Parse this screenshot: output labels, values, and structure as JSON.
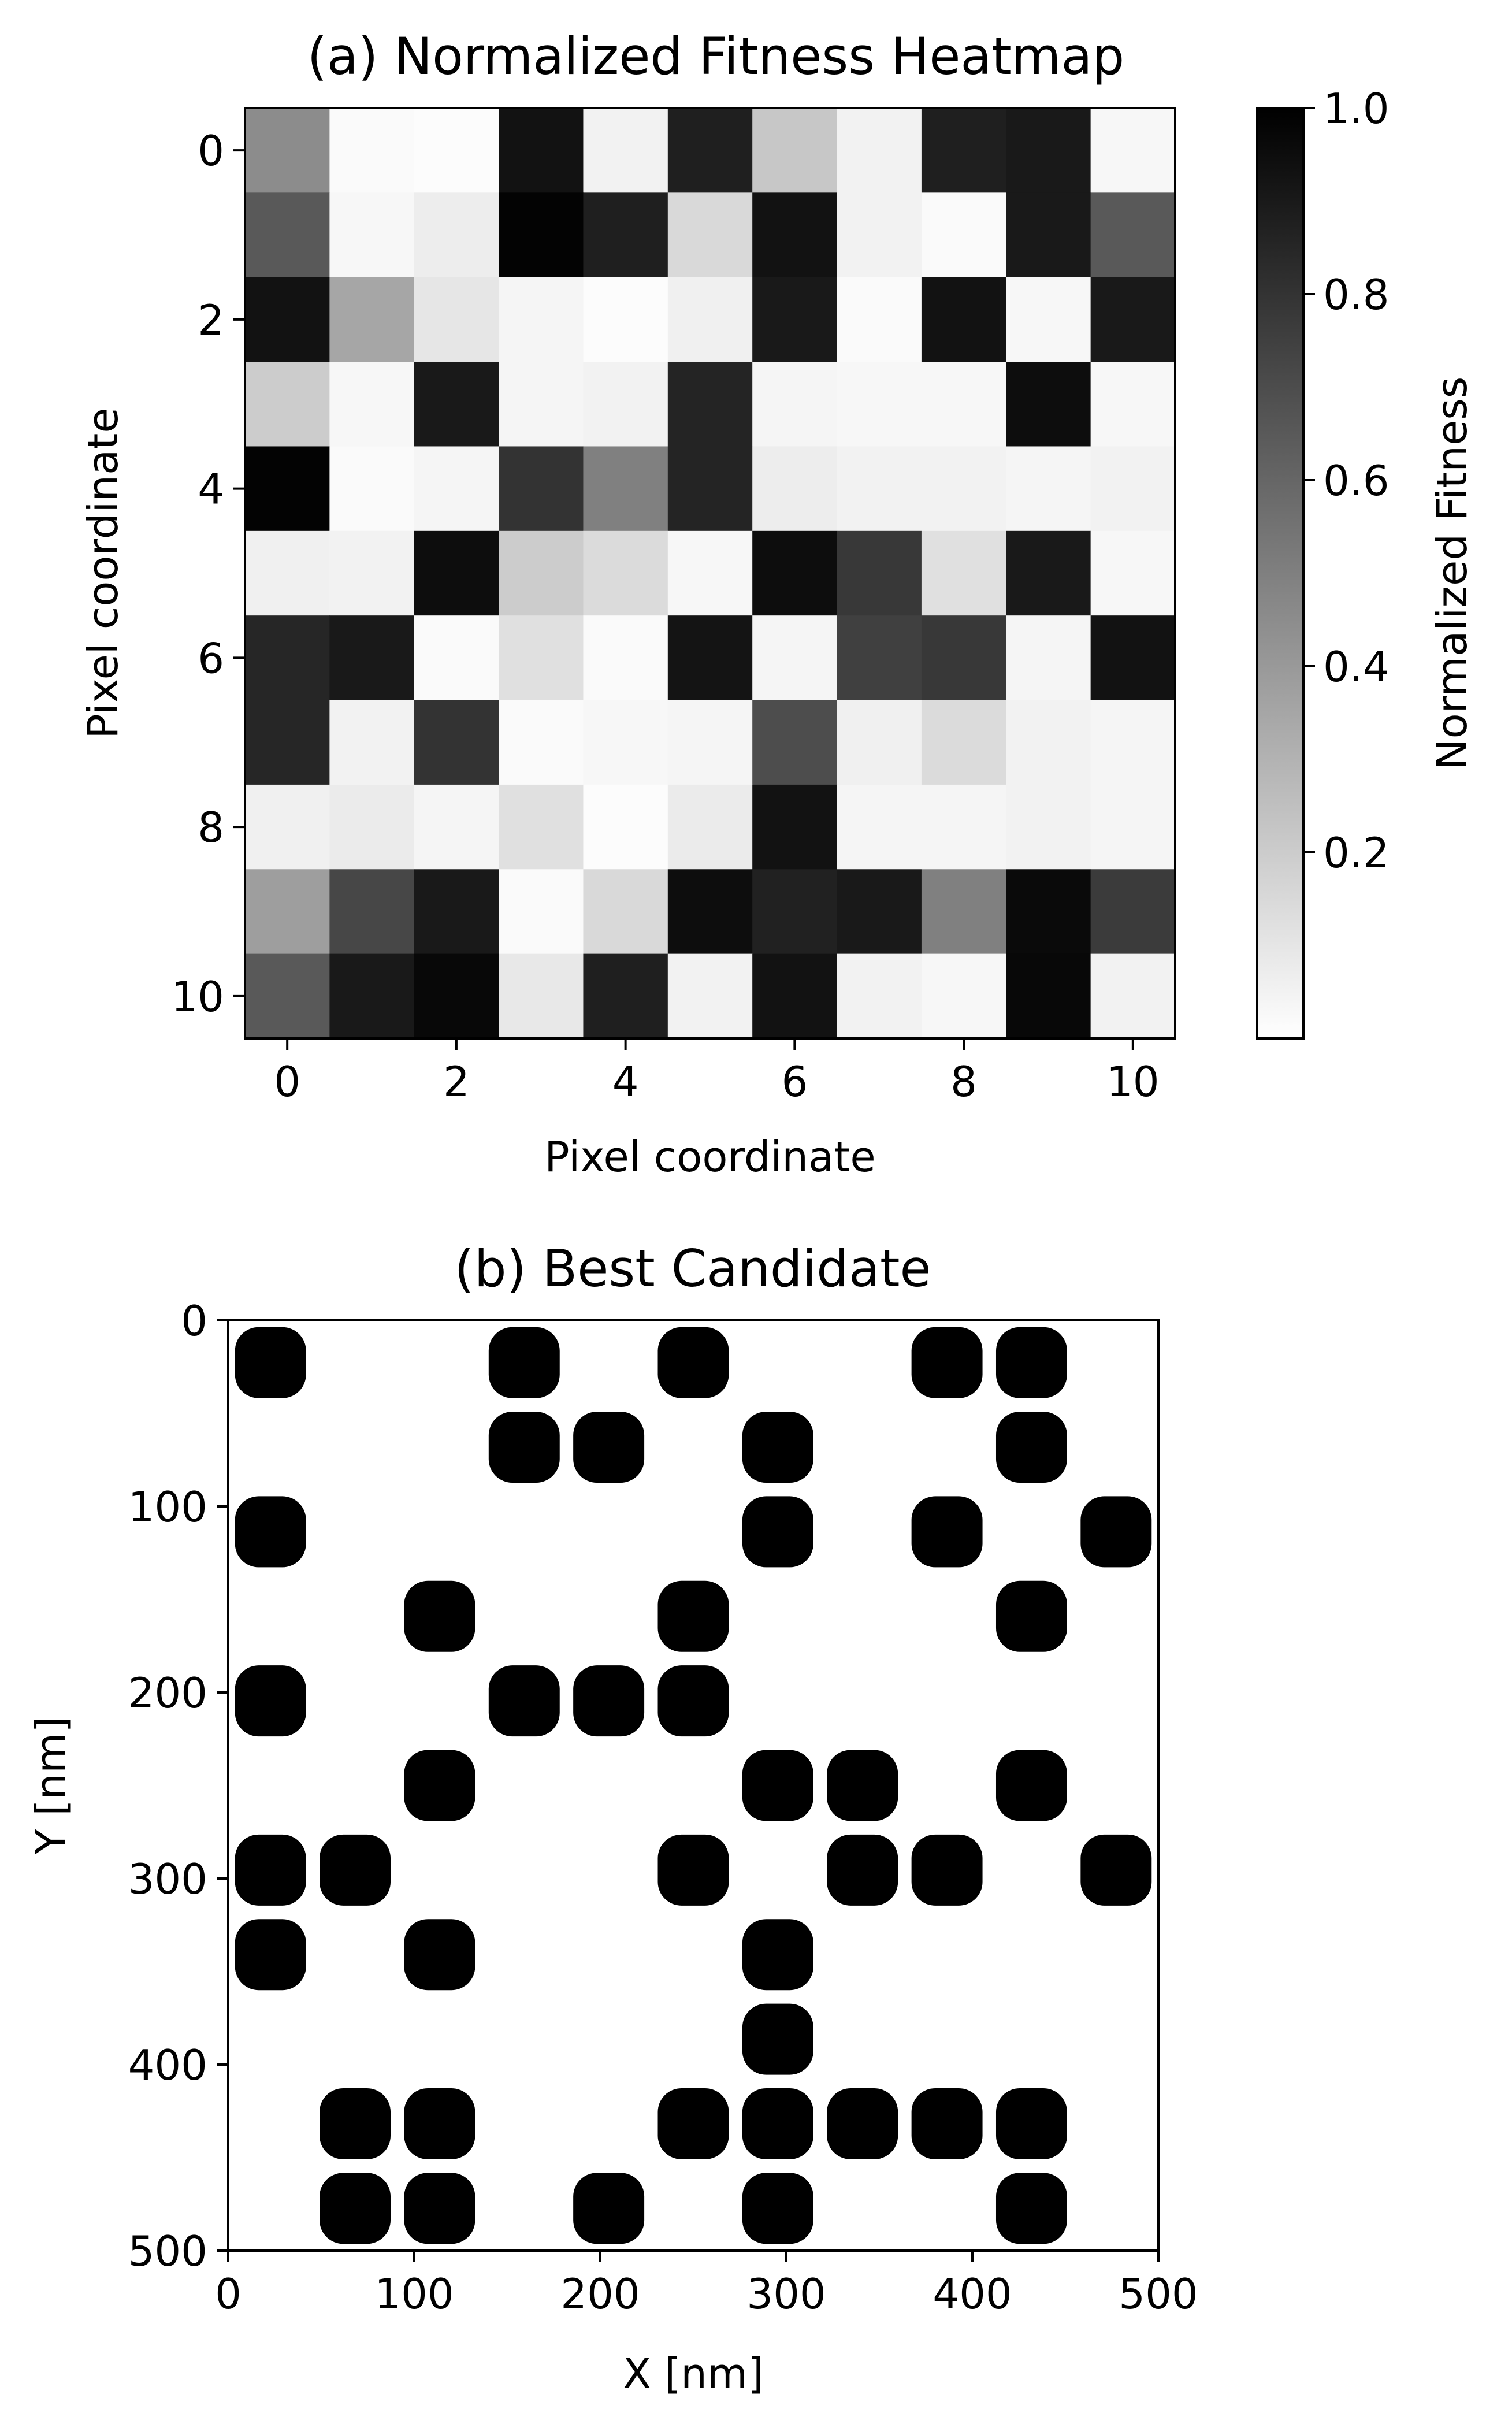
{
  "chart_data": [
    {
      "type": "heatmap",
      "title": "(a) Normalized Fitness Heatmap",
      "xlabel": "Pixel coordinate",
      "ylabel": "Pixel coordinate",
      "x_ticks": [
        "0",
        "2",
        "4",
        "6",
        "8",
        "10"
      ],
      "y_ticks": [
        "0",
        "2",
        "4",
        "6",
        "8",
        "10"
      ],
      "colorbar": {
        "label": "Normalized Fitness",
        "range": [
          0.0,
          1.0
        ],
        "ticks": [
          "0.2",
          "0.4",
          "0.6",
          "0.8",
          "1.0"
        ],
        "colormap": "Greys"
      },
      "matrix": [
        [
          0.45,
          0.02,
          0.01,
          0.93,
          0.05,
          0.88,
          0.22,
          0.05,
          0.88,
          0.9,
          0.03
        ],
        [
          0.65,
          0.03,
          0.07,
          0.99,
          0.88,
          0.15,
          0.93,
          0.05,
          0.02,
          0.9,
          0.65
        ],
        [
          0.93,
          0.35,
          0.1,
          0.04,
          0.01,
          0.06,
          0.9,
          0.02,
          0.93,
          0.03,
          0.9
        ],
        [
          0.2,
          0.03,
          0.9,
          0.04,
          0.05,
          0.86,
          0.04,
          0.03,
          0.03,
          0.95,
          0.03
        ],
        [
          0.99,
          0.02,
          0.04,
          0.8,
          0.5,
          0.86,
          0.07,
          0.05,
          0.05,
          0.04,
          0.05
        ],
        [
          0.06,
          0.05,
          0.95,
          0.2,
          0.14,
          0.03,
          0.95,
          0.78,
          0.12,
          0.9,
          0.03
        ],
        [
          0.85,
          0.9,
          0.02,
          0.12,
          0.02,
          0.92,
          0.04,
          0.75,
          0.78,
          0.04,
          0.93
        ],
        [
          0.85,
          0.05,
          0.8,
          0.02,
          0.03,
          0.04,
          0.7,
          0.06,
          0.14,
          0.05,
          0.04
        ],
        [
          0.06,
          0.08,
          0.04,
          0.12,
          0.01,
          0.08,
          0.93,
          0.04,
          0.04,
          0.05,
          0.04
        ],
        [
          0.38,
          0.72,
          0.9,
          0.02,
          0.15,
          0.95,
          0.87,
          0.9,
          0.5,
          0.96,
          0.77
        ],
        [
          0.65,
          0.9,
          0.97,
          0.09,
          0.88,
          0.05,
          0.93,
          0.05,
          0.03,
          0.97,
          0.05
        ]
      ]
    },
    {
      "type": "heatmap",
      "title": "(b) Best Candidate",
      "xlabel": "X [nm]",
      "ylabel": "Y [nm]",
      "x_ticks": [
        "0",
        "100",
        "200",
        "300",
        "400",
        "500"
      ],
      "y_ticks": [
        "0",
        "100",
        "200",
        "300",
        "400",
        "500"
      ],
      "xlim": [
        0,
        500
      ],
      "ylim": [
        500,
        0
      ],
      "grid_size": 11,
      "binary_pattern": [
        [
          1,
          0,
          0,
          1,
          0,
          1,
          0,
          0,
          1,
          1,
          0
        ],
        [
          0,
          0,
          0,
          1,
          1,
          0,
          1,
          0,
          0,
          1,
          0
        ],
        [
          1,
          0,
          0,
          0,
          0,
          0,
          1,
          0,
          1,
          0,
          1
        ],
        [
          0,
          0,
          1,
          0,
          0,
          1,
          0,
          0,
          0,
          1,
          0
        ],
        [
          1,
          0,
          0,
          1,
          1,
          1,
          0,
          0,
          0,
          0,
          0
        ],
        [
          0,
          0,
          1,
          0,
          0,
          0,
          1,
          1,
          0,
          1,
          0
        ],
        [
          1,
          1,
          0,
          0,
          0,
          1,
          0,
          1,
          1,
          0,
          1
        ],
        [
          1,
          0,
          1,
          0,
          0,
          0,
          1,
          0,
          0,
          0,
          0
        ],
        [
          0,
          0,
          0,
          0,
          0,
          0,
          1,
          0,
          0,
          0,
          0
        ],
        [
          0,
          1,
          1,
          0,
          0,
          1,
          1,
          1,
          1,
          1,
          0
        ],
        [
          0,
          1,
          1,
          0,
          1,
          0,
          1,
          0,
          0,
          1,
          0
        ]
      ]
    }
  ]
}
